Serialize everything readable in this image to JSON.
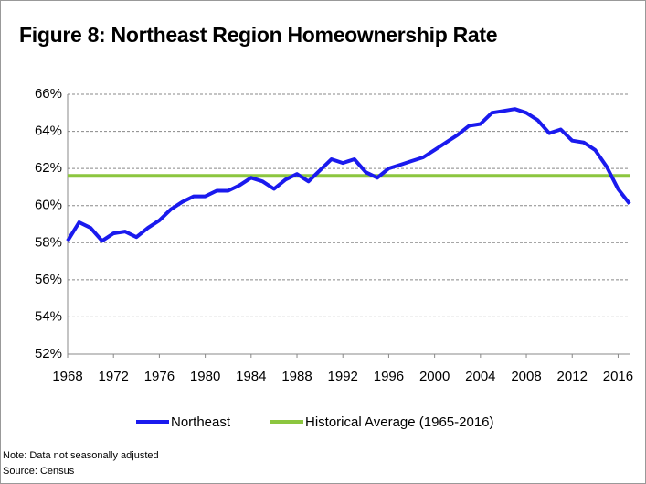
{
  "chart_data": {
    "type": "line",
    "title": "Figure 8: Northeast Region Homeownership Rate",
    "x": [
      1968,
      1969,
      1970,
      1971,
      1972,
      1973,
      1974,
      1975,
      1976,
      1977,
      1978,
      1979,
      1980,
      1981,
      1982,
      1983,
      1984,
      1985,
      1986,
      1987,
      1988,
      1989,
      1990,
      1991,
      1992,
      1993,
      1994,
      1995,
      1996,
      1997,
      1998,
      1999,
      2000,
      2001,
      2002,
      2003,
      2004,
      2005,
      2006,
      2007,
      2008,
      2009,
      2010,
      2011,
      2012,
      2013,
      2014,
      2015,
      2016,
      2017
    ],
    "series": [
      {
        "name": "Northeast",
        "color": "#1a1aee",
        "values": [
          58.1,
          59.1,
          58.8,
          58.1,
          58.5,
          58.6,
          58.3,
          58.8,
          59.2,
          59.8,
          60.2,
          60.5,
          60.5,
          60.8,
          60.8,
          61.1,
          61.5,
          61.3,
          60.9,
          61.4,
          61.7,
          61.3,
          61.9,
          62.5,
          62.3,
          62.5,
          61.8,
          61.5,
          62.0,
          62.2,
          62.4,
          62.6,
          63.0,
          63.4,
          63.8,
          64.3,
          64.4,
          65.0,
          65.1,
          65.2,
          65.0,
          64.6,
          63.9,
          64.1,
          63.5,
          63.4,
          63.0,
          62.1,
          60.9,
          60.1
        ]
      },
      {
        "name": "Historical Average (1965-2016)",
        "color": "#8cc63f",
        "value": 61.6
      }
    ],
    "xlim": [
      1968,
      2017
    ],
    "xticks": [
      1968,
      1972,
      1976,
      1980,
      1984,
      1988,
      1992,
      1996,
      2000,
      2004,
      2008,
      2012,
      2016
    ],
    "ylim": [
      52,
      66
    ],
    "yticks": [
      {
        "value": 52,
        "label": "52%"
      },
      {
        "value": 54,
        "label": "54%"
      },
      {
        "value": 56,
        "label": "56%"
      },
      {
        "value": 58,
        "label": "58%"
      },
      {
        "value": 60,
        "label": "60%"
      },
      {
        "value": 62,
        "label": "62%"
      },
      {
        "value": 64,
        "label": "64%"
      },
      {
        "value": 66,
        "label": "66%"
      }
    ],
    "grid": true,
    "notes": [
      "Note: Data not seasonally adjusted",
      "Source: Census"
    ]
  }
}
